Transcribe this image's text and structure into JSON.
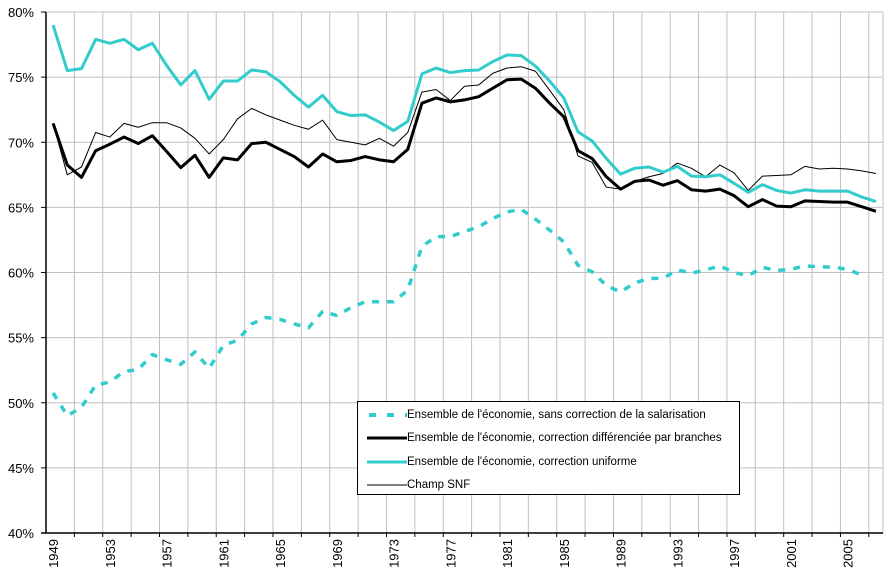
{
  "chart_data": {
    "type": "line",
    "title": "",
    "xlabel": "",
    "ylabel": "",
    "ylim": [
      0.4,
      0.8
    ],
    "y_ticks": [
      "40%",
      "45%",
      "50%",
      "55%",
      "60%",
      "65%",
      "70%",
      "75%",
      "80%"
    ],
    "y_tick_values": [
      0.4,
      0.45,
      0.5,
      0.55,
      0.6,
      0.65,
      0.7,
      0.75,
      0.8
    ],
    "x_tick_labels": [
      "1949",
      "1953",
      "1957",
      "1961",
      "1965",
      "1969",
      "1973",
      "1977",
      "1981",
      "1985",
      "1989",
      "1993",
      "1997",
      "2001",
      "2005"
    ],
    "grid": true,
    "legend_position": "bottom-center",
    "x": [
      1949,
      1950,
      1951,
      1952,
      1953,
      1954,
      1955,
      1956,
      1957,
      1958,
      1959,
      1960,
      1961,
      1962,
      1963,
      1964,
      1965,
      1966,
      1967,
      1968,
      1969,
      1970,
      1971,
      1972,
      1973,
      1974,
      1975,
      1976,
      1977,
      1978,
      1979,
      1980,
      1981,
      1982,
      1983,
      1984,
      1985,
      1986,
      1987,
      1988,
      1989,
      1990,
      1991,
      1992,
      1993,
      1994,
      1995,
      1996,
      1997,
      1998,
      1999,
      2000,
      2001,
      2002,
      2003,
      2004,
      2005,
      2006,
      2007
    ],
    "series": [
      {
        "name": "Ensemble de l'économie, sans correction de la salarisation",
        "color": "#33CCCC",
        "style": "dashed",
        "width": "thick",
        "values": [
          50.75,
          49.0,
          49.65,
          51.35,
          51.6,
          52.4,
          52.55,
          53.7,
          53.3,
          52.95,
          53.9,
          52.65,
          54.4,
          54.8,
          56.05,
          56.55,
          56.4,
          56.05,
          55.75,
          57.0,
          56.7,
          57.3,
          57.75,
          57.75,
          57.75,
          58.65,
          62.0,
          62.75,
          62.75,
          63.15,
          63.5,
          64.15,
          64.65,
          64.85,
          64.1,
          63.25,
          62.35,
          60.55,
          60.05,
          59.0,
          58.5,
          59.2,
          59.55,
          59.55,
          60.2,
          59.95,
          60.2,
          60.5,
          60.0,
          59.75,
          60.4,
          60.15,
          60.25,
          60.5,
          60.45,
          60.4,
          60.25,
          59.8,
          null
        ]
      },
      {
        "name": "Ensemble de l'économie, correction différenciée par branches",
        "color": "#000000",
        "style": "solid",
        "width": "thick",
        "values": [
          71.45,
          68.25,
          67.3,
          69.35,
          69.85,
          70.4,
          69.9,
          70.5,
          69.3,
          68.05,
          69.0,
          67.3,
          68.8,
          68.65,
          69.9,
          70.0,
          69.45,
          68.9,
          68.1,
          69.1,
          68.5,
          68.6,
          68.9,
          68.65,
          68.5,
          69.45,
          73.0,
          73.4,
          73.1,
          73.25,
          73.5,
          74.15,
          74.8,
          74.85,
          74.15,
          73.0,
          71.95,
          69.35,
          68.75,
          67.35,
          66.4,
          67.0,
          67.1,
          66.7,
          67.05,
          66.35,
          66.25,
          66.4,
          65.9,
          65.05,
          65.6,
          65.1,
          65.05,
          65.5,
          65.45,
          65.4,
          65.4,
          65.05,
          64.7
        ]
      },
      {
        "name": "Ensemble de l'économie, correction uniforme",
        "color": "#33CCCC",
        "style": "solid",
        "width": "thick",
        "values": [
          79.0,
          75.5,
          75.65,
          77.9,
          77.6,
          77.9,
          77.1,
          77.6,
          75.9,
          74.4,
          75.5,
          73.3,
          74.7,
          74.7,
          75.55,
          75.4,
          74.65,
          73.6,
          72.7,
          73.6,
          72.35,
          72.05,
          72.1,
          71.55,
          70.9,
          71.6,
          75.25,
          75.7,
          75.35,
          75.5,
          75.55,
          76.2,
          76.7,
          76.65,
          75.85,
          74.7,
          73.4,
          70.8,
          70.1,
          68.75,
          67.55,
          68.0,
          68.1,
          67.7,
          68.15,
          67.4,
          67.35,
          67.5,
          66.85,
          66.15,
          66.75,
          66.3,
          66.1,
          66.35,
          66.25,
          66.25,
          66.25,
          65.8,
          65.45
        ]
      },
      {
        "name": "Champ SNF",
        "color": "#000000",
        "style": "solid",
        "width": "thin",
        "values": [
          71.45,
          67.5,
          68.1,
          70.75,
          70.4,
          71.45,
          71.15,
          71.5,
          71.5,
          71.1,
          70.3,
          69.1,
          70.2,
          71.8,
          72.6,
          72.1,
          71.7,
          71.3,
          71.0,
          71.7,
          70.2,
          70.0,
          69.8,
          70.3,
          69.7,
          70.75,
          73.85,
          74.05,
          73.2,
          74.3,
          74.4,
          75.3,
          75.7,
          75.8,
          75.45,
          74.0,
          72.5,
          68.95,
          68.45,
          66.55,
          66.4,
          67.0,
          67.35,
          67.6,
          68.4,
          68.0,
          67.35,
          68.25,
          67.65,
          66.3,
          67.4,
          67.45,
          67.5,
          68.15,
          67.95,
          68.0,
          67.95,
          67.8,
          67.6
        ]
      }
    ]
  },
  "legend": {
    "items": [
      {
        "label": "Ensemble de l'économie, sans correction de la salarisation"
      },
      {
        "label": "Ensemble de l'économie, correction différenciée par branches"
      },
      {
        "label": "Ensemble de l'économie, correction uniforme"
      },
      {
        "label": "Champ SNF"
      }
    ]
  }
}
